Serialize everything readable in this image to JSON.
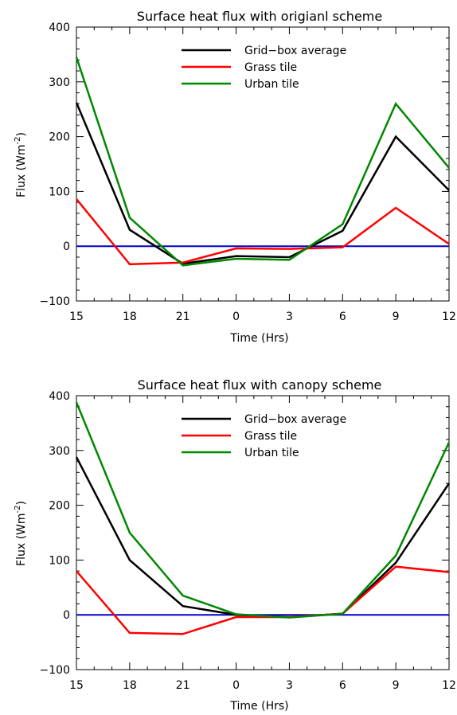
{
  "chart_data": [
    {
      "type": "line",
      "title": "Surface heat flux with origianl scheme",
      "xlabel": "Time (Hrs)",
      "ylabel": "Flux (Wm",
      "ylabel_sup": "-2",
      "ylabel_end": ")",
      "categories": [
        "15",
        "18",
        "21",
        "0",
        "3",
        "6",
        "9",
        "12"
      ],
      "ylim": [
        -100,
        400
      ],
      "yticks": [
        "-100",
        "0",
        "100",
        "200",
        "300",
        "400"
      ],
      "legend_position": "top-center",
      "series": [
        {
          "name": "Grid−box average",
          "color": "#000000",
          "x": [
            0,
            1,
            2,
            3,
            4,
            5,
            6,
            7
          ],
          "values": [
            262,
            30,
            -32,
            -18,
            -20,
            28,
            200,
            102
          ]
        },
        {
          "name": "Grass tile",
          "color": "#ff0000",
          "x": [
            0,
            1,
            2,
            3,
            4,
            5,
            6,
            7
          ],
          "values": [
            86,
            -33,
            -30,
            -4,
            -5,
            -2,
            70,
            4
          ]
        },
        {
          "name": "Urban tile",
          "color": "#008800",
          "x": [
            0,
            1,
            2,
            3,
            4,
            5,
            6,
            7
          ],
          "values": [
            345,
            52,
            -35,
            -23,
            -25,
            40,
            260,
            143
          ]
        }
      ],
      "reference_line": {
        "y": 0,
        "color": "#0000cc"
      }
    },
    {
      "type": "line",
      "title": "Surface heat flux with canopy scheme",
      "xlabel": "Time (Hrs)",
      "ylabel": "Flux (Wm",
      "ylabel_sup": "-2",
      "ylabel_end": ")",
      "categories": [
        "15",
        "18",
        "21",
        "0",
        "3",
        "6",
        "9",
        "12"
      ],
      "ylim": [
        -100,
        400
      ],
      "yticks": [
        "-100",
        "0",
        "100",
        "200",
        "300",
        "400"
      ],
      "legend_position": "top-center",
      "series": [
        {
          "name": "Grid−box average",
          "color": "#000000",
          "x": [
            0,
            1,
            2,
            3,
            4,
            5,
            6,
            7
          ],
          "values": [
            288,
            100,
            16,
            0,
            -4,
            2,
            95,
            240
          ]
        },
        {
          "name": "Grass tile",
          "color": "#ff0000",
          "x": [
            0,
            1,
            2,
            3,
            4,
            5,
            6,
            7
          ],
          "values": [
            80,
            -33,
            -35,
            -4,
            -4,
            2,
            88,
            78
          ]
        },
        {
          "name": "Urban tile",
          "color": "#008800",
          "x": [
            0,
            1,
            2,
            3,
            4,
            5,
            6,
            7
          ],
          "values": [
            388,
            150,
            35,
            1,
            -5,
            2,
            108,
            315
          ]
        }
      ],
      "reference_line": {
        "y": 0,
        "color": "#0000cc"
      }
    }
  ]
}
